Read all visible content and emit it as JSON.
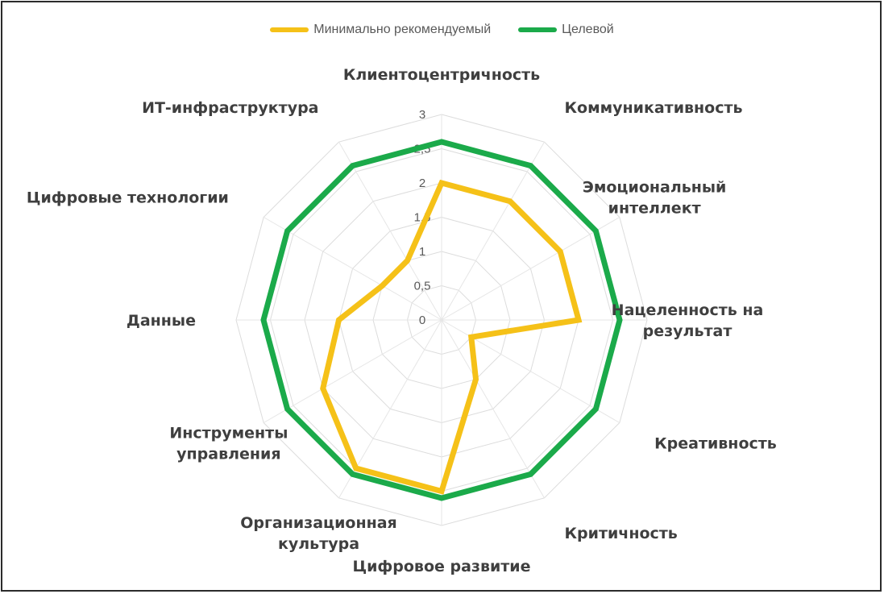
{
  "chart_data": {
    "type": "radar",
    "categories": [
      "Клиентоцентричность",
      "Коммуникативность",
      "Эмоциональный интеллект",
      "Нацеленность на результат",
      "Креативность",
      "Критичность",
      "Цифровое развитие",
      "Организационная культура",
      "Инструменты управления",
      "Данные",
      "Цифровые технологии",
      "ИТ-инфраструктура"
    ],
    "category_lines": [
      [
        "Клиентоцентричность"
      ],
      [
        "Коммуникативность"
      ],
      [
        "Эмоциональный",
        "интеллект"
      ],
      [
        "Нацеленность на",
        "результат"
      ],
      [
        "Креативность"
      ],
      [
        "Критичность"
      ],
      [
        "Цифровое развитие"
      ],
      [
        "Организационная",
        "культура"
      ],
      [
        "Инструменты",
        "управления"
      ],
      [
        "Данные"
      ],
      [
        "Цифровые технологии"
      ],
      [
        "ИТ-инфраструктура"
      ]
    ],
    "series": [
      {
        "name": "Минимально рекомендуемый",
        "color": "#F5C118",
        "values": [
          2.0,
          2.0,
          2.0,
          2.0,
          0.5,
          1.0,
          2.5,
          2.5,
          2.0,
          1.5,
          1.0,
          1.0
        ]
      },
      {
        "name": "Целевой",
        "color": "#1BAA4A",
        "values": [
          2.6,
          2.6,
          2.6,
          2.6,
          2.6,
          2.6,
          2.6,
          2.6,
          2.6,
          2.6,
          2.6,
          2.6
        ]
      }
    ],
    "ticks": [
      "0",
      "0,5",
      "1",
      "1,5",
      "2",
      "2,5",
      "3"
    ],
    "rmax": 3,
    "grid": true,
    "legend_position": "top"
  }
}
